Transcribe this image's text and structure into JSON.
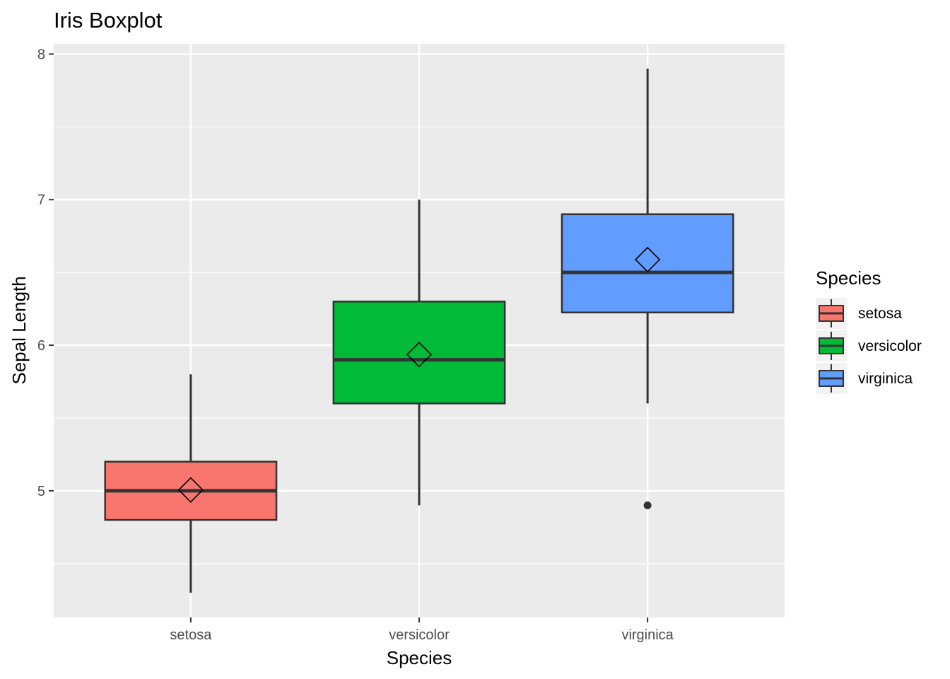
{
  "chart_data": {
    "type": "boxplot",
    "title": "Iris Boxplot",
    "xlabel": "Species",
    "ylabel": "Sepal Length",
    "ylim": [
      4.13,
      8.07
    ],
    "yticks": [
      5,
      6,
      7,
      8
    ],
    "categories": [
      "setosa",
      "versicolor",
      "virginica"
    ],
    "series": [
      {
        "name": "setosa",
        "color": "#F8766D",
        "min": 4.3,
        "q1": 4.8,
        "median": 5.0,
        "q3": 5.2,
        "max": 5.8,
        "mean": 5.006,
        "outliers": []
      },
      {
        "name": "versicolor",
        "color": "#00BA38",
        "min": 4.9,
        "q1": 5.6,
        "median": 5.9,
        "q3": 6.3,
        "max": 7.0,
        "mean": 5.936,
        "outliers": []
      },
      {
        "name": "virginica",
        "color": "#619CFF",
        "min": 5.6,
        "q1": 6.225,
        "median": 6.5,
        "q3": 6.9,
        "max": 7.9,
        "mean": 6.588,
        "outliers": [
          4.9
        ]
      }
    ],
    "grid": true,
    "panel_background": "#EBEBEB",
    "legend": {
      "title": "Species",
      "position": "right",
      "items": [
        "setosa",
        "versicolor",
        "virginica"
      ]
    }
  }
}
